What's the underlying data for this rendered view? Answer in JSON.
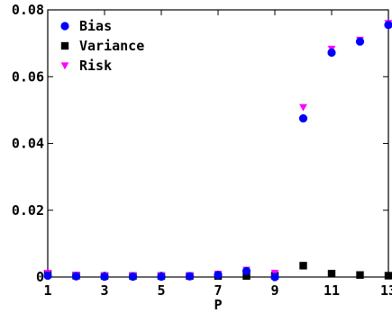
{
  "chart_data": {
    "type": "scatter",
    "title": "",
    "xlabel": "P",
    "ylabel": "",
    "xlim": [
      1,
      13
    ],
    "ylim": [
      0,
      0.08
    ],
    "xticks": [
      1,
      3,
      5,
      7,
      9,
      11,
      13
    ],
    "xtick_labels": [
      "1",
      "3",
      "5",
      "7",
      "9",
      "11",
      "13"
    ],
    "yticks": [
      0,
      0.02,
      0.04,
      0.06,
      0.08
    ],
    "ytick_labels": [
      "0",
      "0.02",
      "0.04",
      "0.06",
      "0.08"
    ],
    "grid": false,
    "legend_position": "top-left",
    "x": [
      1,
      2,
      3,
      4,
      5,
      6,
      7,
      8,
      9,
      10,
      11,
      12,
      13
    ],
    "series": [
      {
        "name": "Bias",
        "marker": "circle",
        "color": "#0000ff",
        "values": [
          0.0004,
          0.0002,
          0.0001,
          0.0001,
          0.0001,
          0.0002,
          0.0006,
          0.0018,
          0.0,
          0.0475,
          0.0672,
          0.0705,
          0.0755
        ]
      },
      {
        "name": "Variance",
        "marker": "square",
        "color": "#000000",
        "values": [
          0.0009,
          0.0004,
          0.0003,
          0.0003,
          0.0003,
          0.0003,
          0.0003,
          0.0003,
          0.0004,
          0.0034,
          0.001,
          0.0006,
          0.0004
        ]
      },
      {
        "name": "Risk",
        "marker": "triangle-down",
        "color": "#ff00ff",
        "values": [
          0.0012,
          0.0006,
          0.0004,
          0.0004,
          0.0004,
          0.0005,
          0.0009,
          0.0021,
          0.0012,
          0.0508,
          0.0683,
          0.071,
          0.076
        ]
      }
    ]
  }
}
